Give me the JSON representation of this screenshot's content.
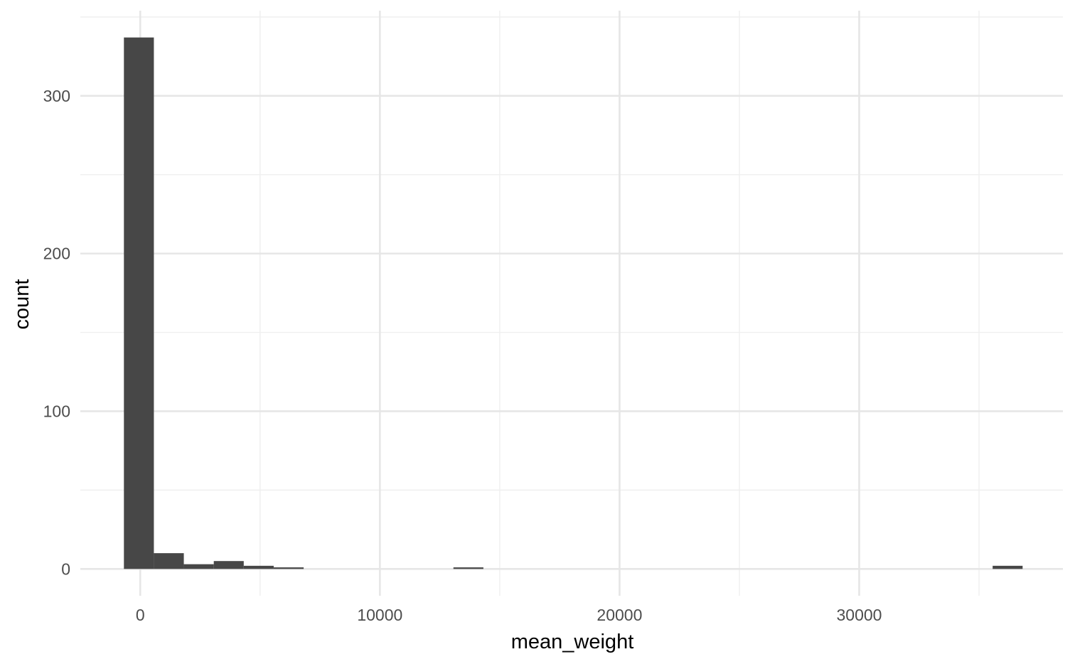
{
  "chart_data": {
    "type": "bar",
    "xlabel": "mean_weight",
    "ylabel": "count",
    "xlim": [
      -2500,
      38500
    ],
    "ylim": [
      -17,
      354
    ],
    "x_ticks": [
      0,
      10000,
      20000,
      30000
    ],
    "x_tick_labels": [
      "0",
      "10000",
      "20000",
      "30000"
    ],
    "y_ticks": [
      0,
      100,
      200,
      300
    ],
    "y_tick_labels": [
      "0",
      "100",
      "200",
      "300"
    ],
    "grid": true,
    "legend": "none",
    "bar_color": "#474747",
    "bins": [
      {
        "x0": -682,
        "x1": 568,
        "count": 337
      },
      {
        "x0": 568,
        "x1": 1818,
        "count": 10
      },
      {
        "x0": 1818,
        "x1": 3068,
        "count": 3
      },
      {
        "x0": 3068,
        "x1": 4318,
        "count": 5
      },
      {
        "x0": 4318,
        "x1": 5568,
        "count": 2
      },
      {
        "x0": 5568,
        "x1": 6818,
        "count": 1
      },
      {
        "x0": 13068,
        "x1": 14318,
        "count": 1
      },
      {
        "x0": 35568,
        "x1": 36818,
        "count": 2
      }
    ]
  }
}
